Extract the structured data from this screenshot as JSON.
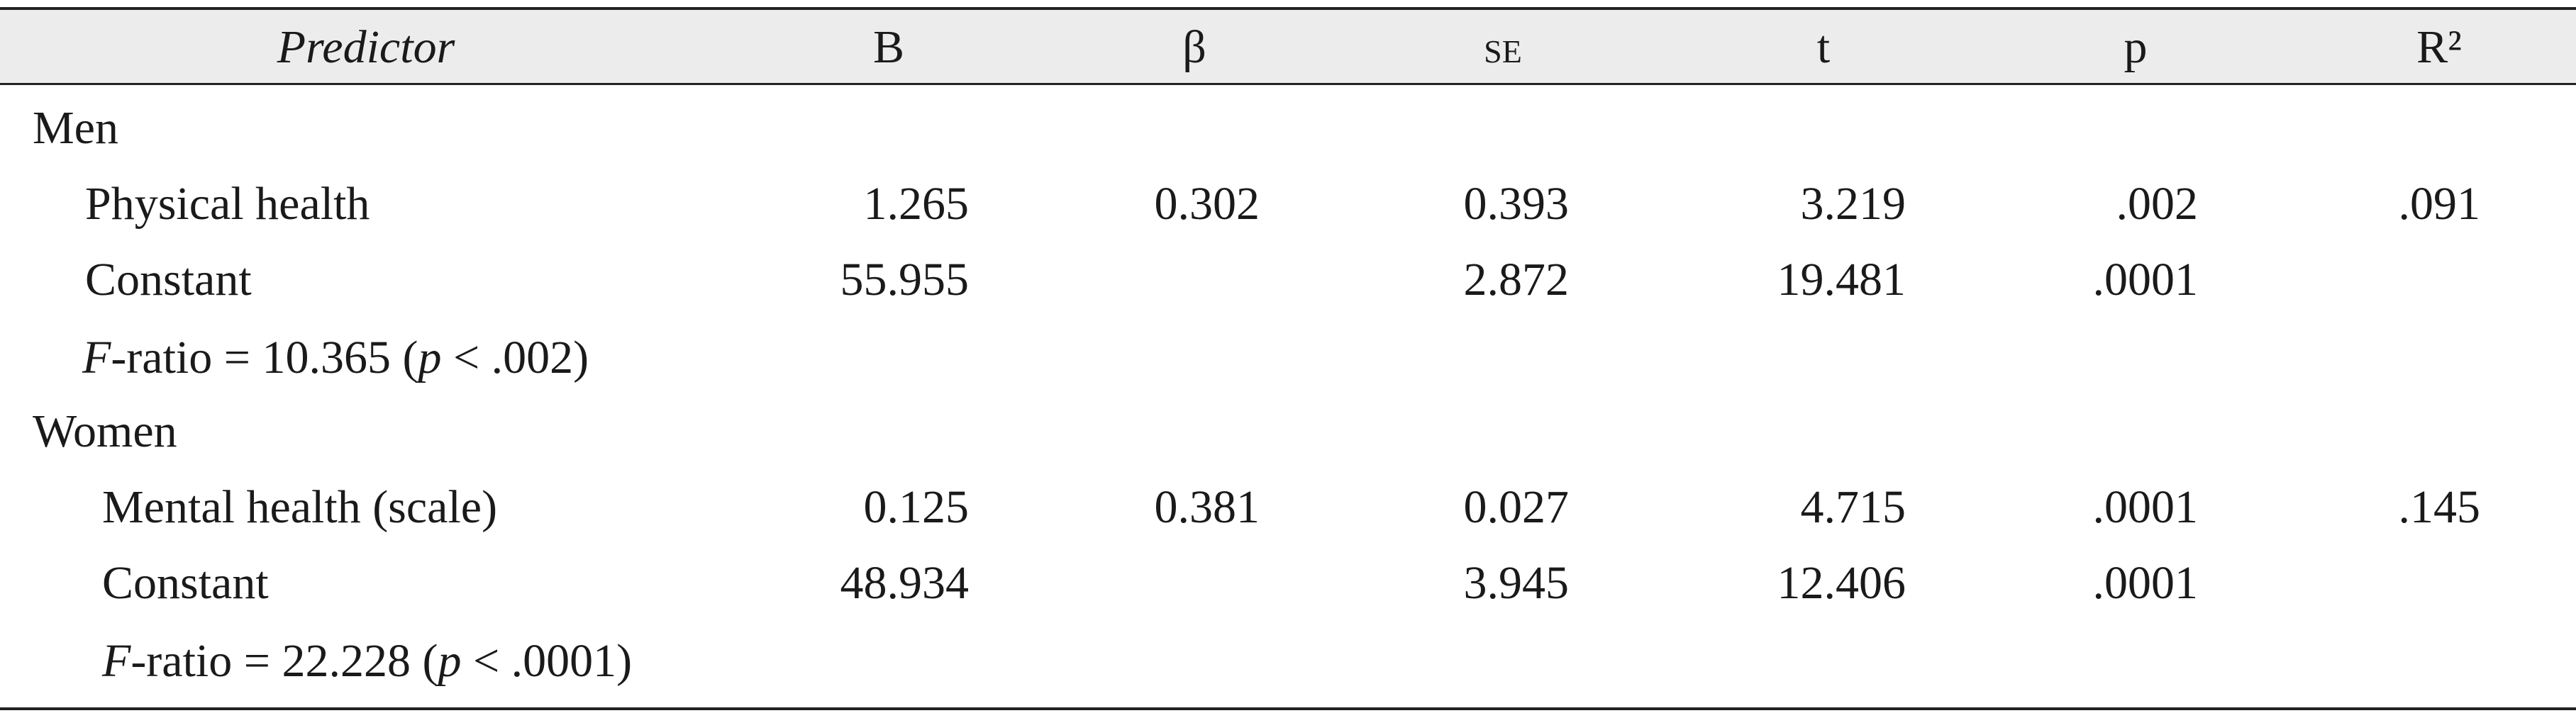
{
  "table": {
    "header": [
      {
        "text": "Predictor",
        "italic": true
      },
      {
        "text": "B"
      },
      {
        "text": "β"
      },
      {
        "text": "se",
        "small_caps": true
      },
      {
        "text": "t"
      },
      {
        "text": "p"
      },
      {
        "text": "R²"
      }
    ],
    "groups": [
      {
        "label": "Men",
        "rows": [
          {
            "label": "Physical health",
            "cells": [
              "1.265",
              "0.302",
              "0.393",
              "3.219",
              ".002",
              ".091"
            ]
          },
          {
            "label": "Constant",
            "cells": [
              "55.955",
              null,
              "2.872",
              "19.481",
              ".0001",
              null
            ]
          }
        ],
        "note": [
          {
            "text": "F",
            "italic": true
          },
          {
            "text": "-ratio = 10.365 ("
          },
          {
            "text": "p",
            "italic": true
          },
          {
            "text": " < .002)"
          }
        ]
      },
      {
        "label": "Women",
        "rows": [
          {
            "label": "Mental health (scale)",
            "cells": [
              "0.125",
              "0.381",
              "0.027",
              "4.715",
              ".0001",
              ".145"
            ]
          },
          {
            "label": "Constant",
            "cells": [
              "48.934",
              null,
              "3.945",
              "12.406",
              ".0001",
              null
            ]
          }
        ],
        "note": [
          {
            "text": "F",
            "italic": true
          },
          {
            "text": "-ratio = 22.228 ("
          },
          {
            "text": "p",
            "italic": true
          },
          {
            "text": " < .0001)"
          }
        ]
      }
    ]
  }
}
